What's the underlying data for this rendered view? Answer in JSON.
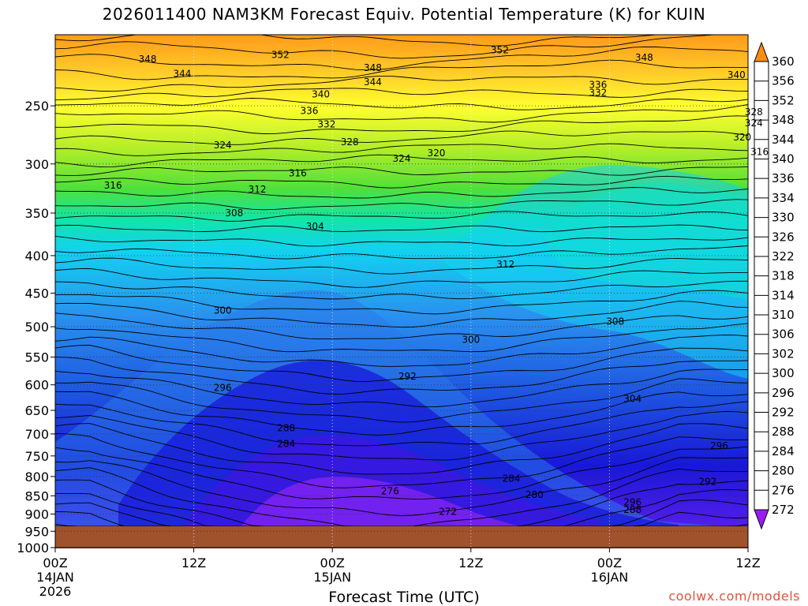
{
  "title": "2026011400 NAM3KM Forecast Equiv. Potential Temperature (K) for KUIN",
  "xlabel": "Forecast Time (UTC)",
  "credit": "coolwx.com/models",
  "chart_data": {
    "type": "heatmap",
    "title": "2026011400 NAM3KM Forecast Equiv. Potential Temperature (K) for KUIN",
    "xlabel": "Forecast Time (UTC)",
    "ylabel": "",
    "x_ticks": [
      {
        "hour": 0,
        "label": "00Z",
        "sub": "14JAN",
        "sub2": "2026"
      },
      {
        "hour": 12,
        "label": "12Z",
        "sub": "",
        "sub2": ""
      },
      {
        "hour": 24,
        "label": "00Z",
        "sub": "15JAN",
        "sub2": ""
      },
      {
        "hour": 36,
        "label": "12Z",
        "sub": "",
        "sub2": ""
      },
      {
        "hour": 48,
        "label": "00Z",
        "sub": "16JAN",
        "sub2": ""
      },
      {
        "hour": 60,
        "label": "12Z",
        "sub": "",
        "sub2": ""
      }
    ],
    "xlim": [
      0,
      60
    ],
    "y_ticks": [
      250,
      300,
      350,
      400,
      450,
      500,
      550,
      600,
      650,
      700,
      750,
      800,
      850,
      900,
      950,
      1000
    ],
    "ylim": [
      200,
      1000
    ],
    "y_scale": "log-pressure",
    "grid": true,
    "colorbar_labels": [
      272,
      276,
      280,
      284,
      288,
      292,
      296,
      300,
      302,
      306,
      310,
      314,
      318,
      322,
      326,
      330,
      334,
      336,
      340,
      344,
      348,
      352,
      356,
      360
    ],
    "colorbar_colors": [
      "#8b1cf5",
      "#7a22f0",
      "#5f1fe8",
      "#3b17e0",
      "#1818d8",
      "#1432d8",
      "#1e55e0",
      "#2a78ea",
      "#2d95f0",
      "#1fb6f5",
      "#12d2f0",
      "#10e0d0",
      "#12e5a8",
      "#25e078",
      "#4fe03a",
      "#88e628",
      "#b5ee28",
      "#dcf52a",
      "#ffff30",
      "#fff22e",
      "#ffd02a",
      "#ffb022",
      "#ff941a"
    ],
    "surface_color": "#a0522d",
    "contour_labels": [
      {
        "v": "352",
        "h": 19.5,
        "p": 213
      },
      {
        "v": "348",
        "h": 8.0,
        "p": 216
      },
      {
        "v": "344",
        "h": 11.0,
        "p": 226
      },
      {
        "v": "348",
        "h": 27.5,
        "p": 222
      },
      {
        "v": "344",
        "h": 27.5,
        "p": 232
      },
      {
        "v": "352",
        "h": 38.5,
        "p": 210
      },
      {
        "v": "348",
        "h": 51.0,
        "p": 215
      },
      {
        "v": "340",
        "h": 59.0,
        "p": 227
      },
      {
        "v": "336",
        "h": 47.0,
        "p": 234
      },
      {
        "v": "332",
        "h": 47.0,
        "p": 240
      },
      {
        "v": "340",
        "h": 23.0,
        "p": 241
      },
      {
        "v": "336",
        "h": 22.0,
        "p": 254
      },
      {
        "v": "332",
        "h": 23.5,
        "p": 265
      },
      {
        "v": "328",
        "h": 25.5,
        "p": 280
      },
      {
        "v": "324",
        "h": 14.5,
        "p": 283
      },
      {
        "v": "324",
        "h": 30.0,
        "p": 295
      },
      {
        "v": "320",
        "h": 33.0,
        "p": 290
      },
      {
        "v": "328",
        "h": 60.5,
        "p": 255
      },
      {
        "v": "324",
        "h": 60.5,
        "p": 264
      },
      {
        "v": "320",
        "h": 59.5,
        "p": 276
      },
      {
        "v": "316",
        "h": 61.0,
        "p": 289
      },
      {
        "v": "316",
        "h": 5.0,
        "p": 321
      },
      {
        "v": "316",
        "h": 21.0,
        "p": 309
      },
      {
        "v": "312",
        "h": 17.5,
        "p": 325
      },
      {
        "v": "308",
        "h": 15.5,
        "p": 350
      },
      {
        "v": "304",
        "h": 22.5,
        "p": 365
      },
      {
        "v": "312",
        "h": 39.0,
        "p": 411
      },
      {
        "v": "300",
        "h": 14.5,
        "p": 475
      },
      {
        "v": "308",
        "h": 48.5,
        "p": 492
      },
      {
        "v": "300",
        "h": 36.0,
        "p": 521
      },
      {
        "v": "292",
        "h": 30.5,
        "p": 584
      },
      {
        "v": "296",
        "h": 14.5,
        "p": 606
      },
      {
        "v": "304",
        "h": 50.0,
        "p": 627
      },
      {
        "v": "288",
        "h": 20.0,
        "p": 687
      },
      {
        "v": "284",
        "h": 20.0,
        "p": 722
      },
      {
        "v": "296",
        "h": 57.5,
        "p": 727
      },
      {
        "v": "284",
        "h": 39.5,
        "p": 805
      },
      {
        "v": "292",
        "h": 56.5,
        "p": 813
      },
      {
        "v": "276",
        "h": 29.0,
        "p": 838
      },
      {
        "v": "280",
        "h": 41.5,
        "p": 847
      },
      {
        "v": "296",
        "h": 50.0,
        "p": 867
      },
      {
        "v": "272",
        "h": 34.0,
        "p": 893
      },
      {
        "v": "288",
        "h": 50.0,
        "p": 888
      }
    ]
  }
}
